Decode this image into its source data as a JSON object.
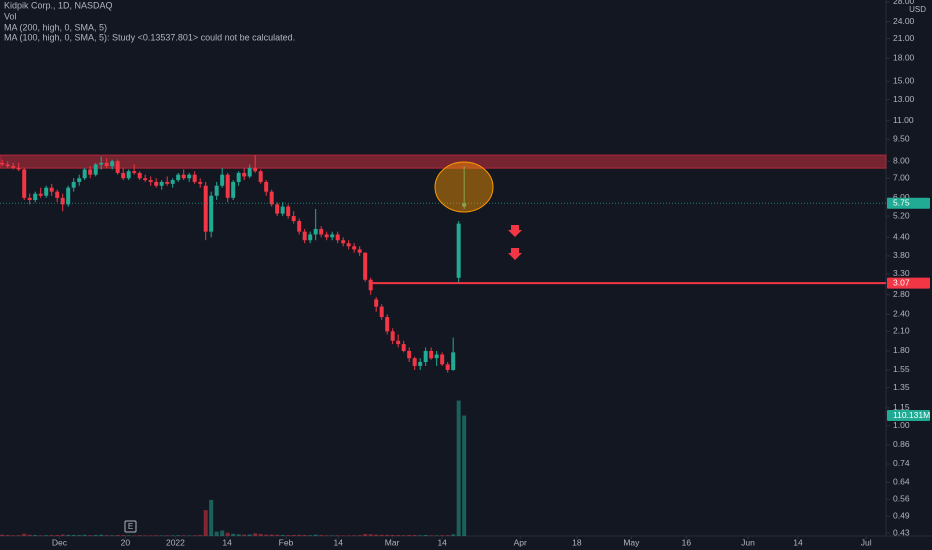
{
  "chart_data": {
    "type": "candlestick",
    "title": "Kidpik Corp., 1D, NASDAQ",
    "legend_lines": [
      "Vol",
      "MA (200, high, 0, SMA, 5)",
      "MA (100, high, 0, SMA, 5): Study <0.13537.801> could not be calculated."
    ],
    "currency": "USD",
    "log": true,
    "grid": false,
    "up_color": "#22ab94",
    "down_color": "#f23645",
    "ylim": [
      0.42,
      28.44
    ],
    "yticks": [
      {
        "value": 28,
        "label": "28.00"
      },
      {
        "value": 24,
        "label": "24.00"
      },
      {
        "value": 21,
        "label": "21.00"
      },
      {
        "value": 18,
        "label": "18.00"
      },
      {
        "value": 15,
        "label": "15.00"
      },
      {
        "value": 13,
        "label": "13.00"
      },
      {
        "value": 11,
        "label": "11.00"
      },
      {
        "value": 9.5,
        "label": "9.50"
      },
      {
        "value": 8,
        "label": "8.00"
      },
      {
        "value": 7,
        "label": "7.00"
      },
      {
        "value": 6,
        "label": "6.00"
      },
      {
        "value": 5.2,
        "label": "5.20"
      },
      {
        "value": 4.4,
        "label": "4.40"
      },
      {
        "value": 3.8,
        "label": "3.80"
      },
      {
        "value": 3.3,
        "label": "3.30"
      },
      {
        "value": 2.8,
        "label": "2.80"
      },
      {
        "value": 2.4,
        "label": "2.40"
      },
      {
        "value": 2.1,
        "label": "2.10"
      },
      {
        "value": 1.8,
        "label": "1.80"
      },
      1.55,
      1.35,
      1.15,
      {
        "value": 1,
        "label": "1.00"
      },
      0.86,
      0.74,
      0.64,
      0.56,
      0.49,
      0.43
    ],
    "xlim": [
      -0.4,
      160.7
    ],
    "xticks": [
      {
        "value": 10.4,
        "label": "Dec"
      },
      {
        "value": 22.4,
        "label": "20"
      },
      {
        "value": 31.5,
        "label": "2022"
      },
      {
        "value": 40.9,
        "label": "14"
      },
      {
        "value": 51.6,
        "label": "Feb"
      },
      {
        "value": 61.1,
        "label": "14"
      },
      {
        "value": 70.9,
        "label": "Mar"
      },
      {
        "value": 80,
        "label": "14"
      },
      {
        "value": 94.2,
        "label": "Apr"
      },
      {
        "value": 104.5,
        "label": "18"
      },
      {
        "value": 114.4,
        "label": "May"
      },
      {
        "value": 124.4,
        "label": "16"
      },
      {
        "value": 135.6,
        "label": "Jun"
      },
      {
        "value": 144.7,
        "label": "14"
      },
      {
        "value": 157.1,
        "label": "Jul"
      }
    ],
    "candles": [
      [
        7.9,
        8.1,
        7.7,
        7.8
      ],
      [
        7.8,
        8.0,
        7.6,
        7.7
      ],
      [
        7.7,
        7.9,
        7.5,
        7.6
      ],
      [
        7.6,
        7.9,
        7.4,
        7.5
      ],
      [
        7.5,
        7.6,
        5.9,
        6.0
      ],
      [
        6.0,
        6.2,
        5.7,
        5.9
      ],
      [
        5.9,
        6.3,
        5.8,
        6.2
      ],
      [
        6.2,
        6.5,
        6.0,
        6.1
      ],
      [
        6.1,
        6.6,
        6.0,
        6.5
      ],
      [
        6.5,
        6.7,
        6.1,
        6.3
      ],
      [
        6.3,
        6.4,
        5.8,
        6.0
      ],
      [
        6.0,
        6.2,
        5.4,
        5.7
      ],
      [
        5.7,
        6.6,
        5.6,
        6.5
      ],
      [
        6.5,
        7.0,
        6.3,
        6.8
      ],
      [
        6.8,
        7.2,
        6.6,
        7.0
      ],
      [
        7.0,
        7.6,
        6.9,
        7.5
      ],
      [
        7.5,
        7.7,
        7.0,
        7.2
      ],
      [
        7.2,
        7.9,
        7.1,
        7.8
      ],
      [
        7.8,
        8.3,
        7.5,
        7.9
      ],
      [
        7.9,
        8.2,
        7.6,
        7.7
      ],
      [
        7.7,
        8.1,
        7.5,
        8.0
      ],
      [
        8.0,
        8.1,
        7.2,
        7.3
      ],
      [
        7.3,
        7.6,
        6.9,
        7.0
      ],
      [
        7.0,
        7.5,
        6.9,
        7.4
      ],
      [
        7.4,
        7.8,
        7.2,
        7.3
      ],
      [
        7.3,
        7.4,
        6.9,
        7.0
      ],
      [
        7.0,
        7.2,
        6.8,
        6.9
      ],
      [
        6.9,
        7.1,
        6.6,
        6.8
      ],
      [
        6.8,
        7.0,
        6.5,
        6.6
      ],
      [
        6.6,
        6.9,
        6.4,
        6.8
      ],
      [
        6.8,
        7.1,
        6.6,
        6.7
      ],
      [
        6.7,
        7.0,
        6.5,
        6.9
      ],
      [
        6.9,
        7.3,
        6.8,
        7.2
      ],
      [
        7.2,
        7.5,
        6.9,
        7.0
      ],
      [
        7.0,
        7.3,
        6.8,
        7.2
      ],
      [
        7.2,
        7.4,
        6.7,
        6.8
      ],
      [
        6.8,
        7.0,
        6.5,
        6.7
      ],
      [
        6.6,
        6.8,
        4.3,
        4.6
      ],
      [
        4.6,
        6.3,
        4.4,
        6.1
      ],
      [
        6.1,
        6.8,
        5.9,
        6.6
      ],
      [
        6.6,
        7.6,
        6.5,
        7.2
      ],
      [
        7.2,
        7.3,
        5.8,
        6.0
      ],
      [
        6.0,
        6.9,
        5.9,
        6.8
      ],
      [
        6.8,
        7.4,
        6.6,
        7.3
      ],
      [
        7.3,
        7.6,
        6.9,
        7.1
      ],
      [
        7.1,
        7.8,
        7.0,
        7.6
      ],
      [
        7.6,
        8.4,
        7.3,
        7.4
      ],
      [
        7.4,
        7.5,
        6.7,
        6.8
      ],
      [
        6.8,
        6.9,
        6.1,
        6.3
      ],
      [
        6.3,
        6.4,
        5.6,
        5.7
      ],
      [
        5.7,
        5.8,
        5.2,
        5.3
      ],
      [
        5.3,
        5.8,
        5.2,
        5.6
      ],
      [
        5.6,
        5.7,
        5.1,
        5.2
      ],
      [
        5.2,
        5.4,
        4.9,
        5.0
      ],
      [
        5.0,
        5.1,
        4.5,
        4.6
      ],
      [
        4.6,
        4.7,
        4.2,
        4.3
      ],
      [
        4.3,
        4.6,
        4.2,
        4.5
      ],
      [
        4.5,
        5.5,
        4.3,
        4.7
      ],
      [
        4.7,
        4.8,
        4.4,
        4.5
      ],
      [
        4.5,
        4.6,
        4.3,
        4.4
      ],
      [
        4.4,
        4.6,
        4.3,
        4.5
      ],
      [
        4.5,
        4.6,
        4.2,
        4.3
      ],
      [
        4.3,
        4.4,
        4.1,
        4.2
      ],
      [
        4.2,
        4.3,
        4.0,
        4.1
      ],
      [
        4.1,
        4.2,
        3.9,
        4.0
      ],
      [
        4.0,
        4.1,
        3.8,
        3.9
      ],
      [
        3.9,
        3.9,
        3.1,
        3.15
      ],
      [
        3.15,
        3.2,
        2.8,
        2.9
      ],
      [
        2.7,
        2.75,
        2.45,
        2.55
      ],
      [
        2.55,
        2.6,
        2.3,
        2.35
      ],
      [
        2.35,
        2.4,
        2.05,
        2.1
      ],
      [
        2.1,
        2.15,
        1.9,
        1.95
      ],
      [
        1.95,
        2.05,
        1.85,
        1.9
      ],
      [
        1.9,
        1.95,
        1.78,
        1.8
      ],
      [
        1.8,
        1.85,
        1.65,
        1.7
      ],
      [
        1.7,
        1.72,
        1.55,
        1.6
      ],
      [
        1.6,
        1.7,
        1.55,
        1.65
      ],
      [
        1.65,
        1.85,
        1.6,
        1.8
      ],
      [
        1.8,
        1.85,
        1.68,
        1.7
      ],
      [
        1.7,
        1.8,
        1.6,
        1.75
      ],
      [
        1.75,
        1.78,
        1.6,
        1.62
      ],
      [
        1.62,
        1.65,
        1.52,
        1.55
      ],
      [
        1.55,
        2.0,
        1.54,
        1.78
      ],
      [
        3.2,
        5.0,
        3.07,
        4.9
      ],
      [
        5.6,
        7.7,
        5.5,
        5.75
      ]
    ],
    "y2lim": [
      0,
      490
    ],
    "volume": [
      1.2,
      0.8,
      0.6,
      0.7,
      2.1,
      1.1,
      0.9,
      0.6,
      0.7,
      0.8,
      0.9,
      1.3,
      1.0,
      0.9,
      0.8,
      1.1,
      0.7,
      0.9,
      1.2,
      0.8,
      0.6,
      0.9,
      0.8,
      0.6,
      0.5,
      0.7,
      0.6,
      0.5,
      0.6,
      0.5,
      0.6,
      0.5,
      0.7,
      0.6,
      0.5,
      0.6,
      0.8,
      23.6,
      33,
      4,
      5,
      3,
      2,
      1.5,
      1.2,
      1.4,
      2.5,
      1.8,
      1.2,
      1.3,
      1.1,
      0.9,
      0.8,
      0.9,
      1.0,
      0.9,
      0.7,
      1.2,
      0.8,
      0.6,
      0.5,
      0.6,
      0.5,
      0.5,
      0.6,
      0.7,
      1.8,
      1.6,
      1.2,
      1.0,
      1.1,
      0.9,
      0.8,
      0.7,
      0.9,
      0.8,
      0.6,
      0.9,
      0.6,
      0.5,
      0.6,
      0.8,
      1.5,
      123.8,
      110.131
    ],
    "volume_labels": [
      null,
      null,
      null,
      null,
      null,
      null,
      null,
      null,
      null,
      null,
      null,
      null,
      null,
      null,
      null,
      null,
      null,
      null,
      null,
      null,
      null,
      null,
      null,
      null,
      null,
      null,
      null,
      null,
      null,
      null,
      null,
      null,
      null,
      null,
      null,
      null,
      null,
      null,
      null,
      null,
      null,
      null,
      null,
      null,
      null,
      null,
      null,
      null,
      null,
      null,
      null,
      null,
      null,
      null,
      null,
      null,
      null,
      null,
      null,
      null,
      null,
      null,
      null,
      null,
      null,
      null,
      null,
      null,
      null,
      null,
      null,
      null,
      null,
      null,
      null,
      null,
      null,
      null,
      null,
      null,
      null,
      null,
      null,
      null,
      "110.131M"
    ],
    "zone": [
      7.58,
      8.4
    ],
    "hline": 3.07,
    "event": "E"
  }
}
